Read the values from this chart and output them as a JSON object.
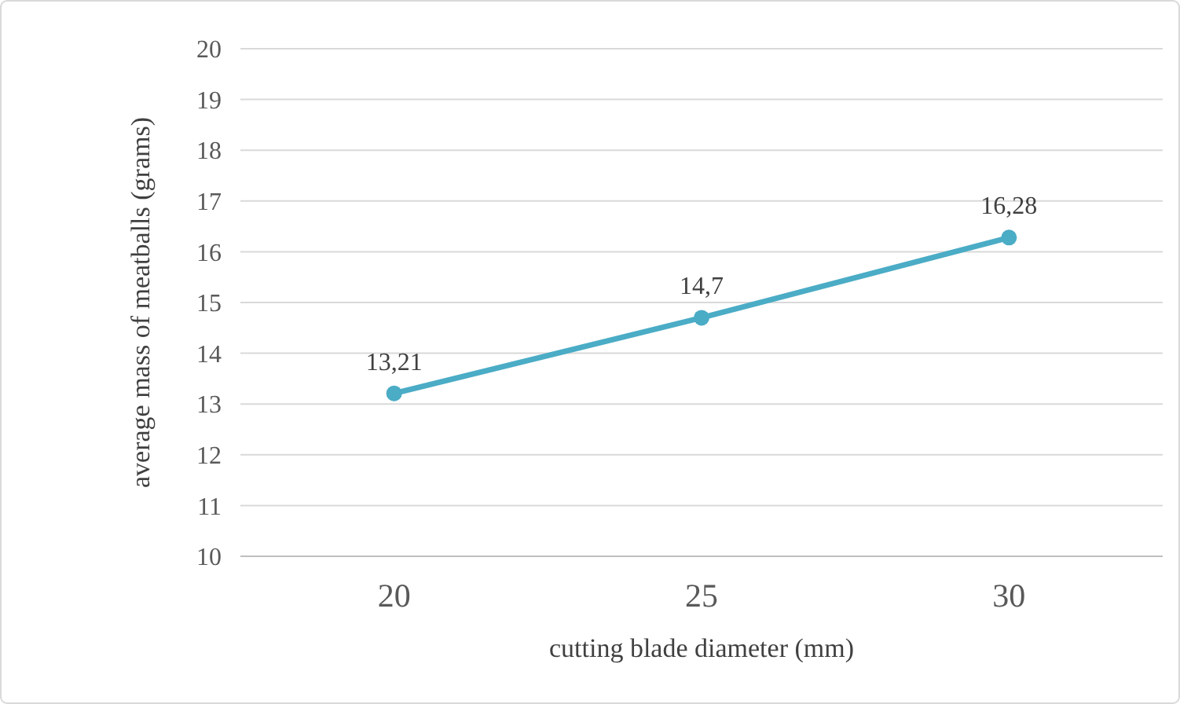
{
  "chart_data": {
    "type": "line",
    "xlabel": "cutting blade diameter (mm)",
    "ylabel": "average mass of meatballs (grams)",
    "categories": [
      "20",
      "25",
      "30"
    ],
    "series": [
      {
        "color": "#4bacc6",
        "values": [
          13.21,
          14.7,
          16.28
        ],
        "value_labels": [
          "13,21",
          "14,7",
          "16,28"
        ]
      }
    ],
    "ylim": [
      10,
      20
    ],
    "yticks": [
      10,
      11,
      12,
      13,
      14,
      15,
      16,
      17,
      18,
      19,
      20
    ],
    "grid": "y",
    "marker": "circle",
    "line_style": "solid"
  }
}
